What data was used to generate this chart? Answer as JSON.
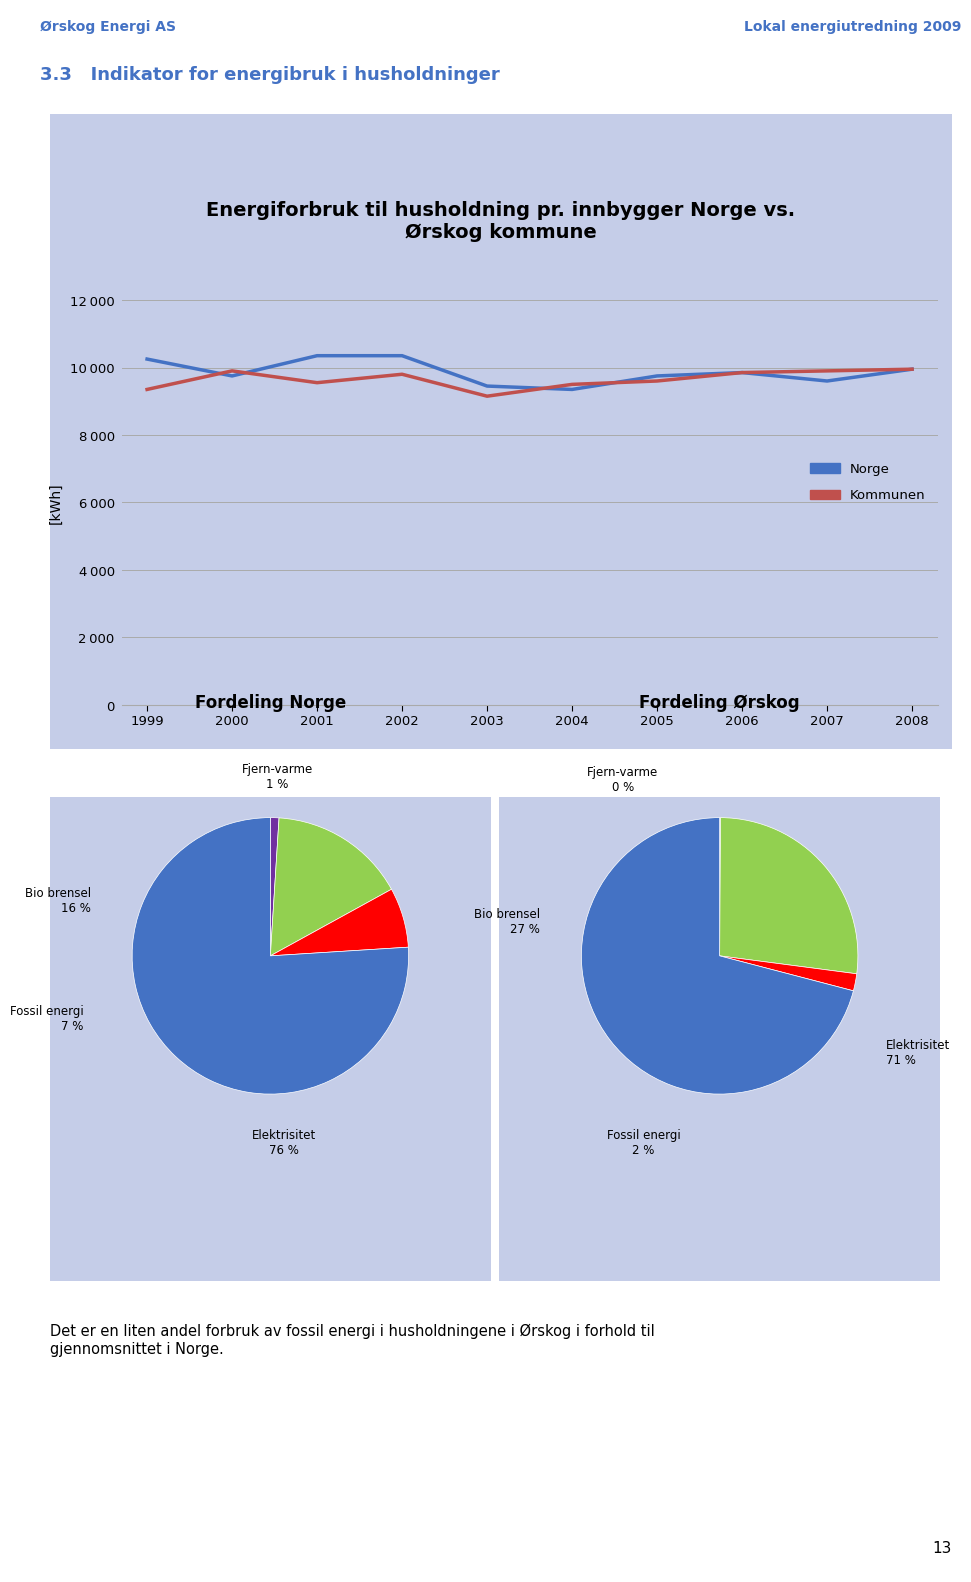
{
  "header_left": "Ørskog Energi AS",
  "header_right": "Lokal energiutredning 2009",
  "section_title": "3.3   Indikator for energibruk i husholdninger",
  "chart_title": "Energiforbruk til husholdning pr. innbygger Norge vs.\nØrskog kommune",
  "ylabel": "[kWh]",
  "years": [
    1999,
    2000,
    2001,
    2002,
    2003,
    2004,
    2005,
    2006,
    2007,
    2008
  ],
  "norge_values": [
    10250,
    9750,
    10350,
    10350,
    9450,
    9350,
    9750,
    9850,
    9600,
    9950
  ],
  "kommune_values": [
    9350,
    9900,
    9550,
    9800,
    9150,
    9500,
    9600,
    9850,
    9900,
    9950
  ],
  "norge_color": "#4472C4",
  "kommune_color": "#C0504D",
  "ylim": [
    0,
    12000
  ],
  "yticks": [
    0,
    2000,
    4000,
    6000,
    8000,
    10000,
    12000
  ],
  "chart_bg": "#C5CDE8",
  "page_bg": "#FFFFFF",
  "header_color": "#4472C4",
  "pie1_title": "Fordeling Norge",
  "pie1_values": [
    1,
    16,
    7,
    76
  ],
  "pie1_label_texts": [
    "Fjern-varme\n1 %",
    "Bio brensel\n16 %",
    "Fossil energi\n7 %",
    "Elektrisitet\n76 %"
  ],
  "pie1_colors": [
    "#7030A0",
    "#92D050",
    "#FF0000",
    "#4472C4"
  ],
  "pie2_title": "Fordeling Ørskog",
  "pie2_values": [
    0.1,
    27,
    2,
    71
  ],
  "pie2_label_texts": [
    "Fjern-varme\n0 %",
    "Bio brensel\n27 %",
    "Fossil energi\n2 %",
    "Elektrisitet\n71 %"
  ],
  "pie2_colors": [
    "#7030A0",
    "#92D050",
    "#FF0000",
    "#4472C4"
  ],
  "legend_labels": [
    "Norge",
    "Kommunen"
  ],
  "footer_text": "Det er en liten andel forbruk av fossil energi i husholdningene i Ørskog i forhold til\ngjennomsnittet i Norge.",
  "page_number": "13"
}
